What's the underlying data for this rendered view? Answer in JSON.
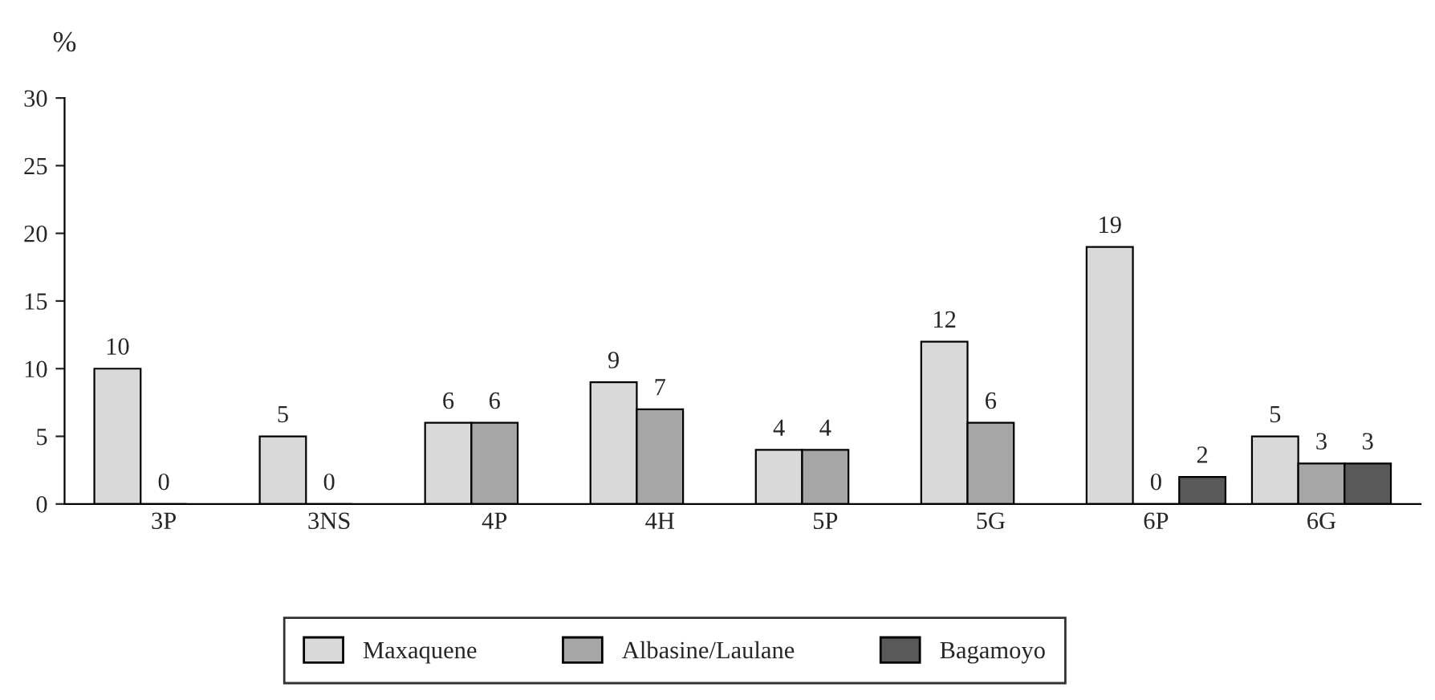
{
  "chart_data": {
    "type": "bar",
    "ylabel": "%",
    "categories": [
      "3P",
      "3NS",
      "4P",
      "4H",
      "5P",
      "5G",
      "6P",
      "6G"
    ],
    "series": [
      {
        "name": "Maxaquene",
        "color": "#d9d9d9",
        "values": [
          10,
          5,
          6,
          9,
          4,
          12,
          19,
          5
        ]
      },
      {
        "name": "Albasine/Laulane",
        "color": "#a6a6a6",
        "values": [
          0,
          0,
          6,
          7,
          4,
          6,
          0,
          3
        ]
      },
      {
        "name": "Bagamoyo",
        "color": "#595959",
        "values": [
          null,
          null,
          null,
          null,
          null,
          null,
          2,
          3
        ]
      }
    ],
    "ylim": [
      0,
      30
    ],
    "yticks": [
      0,
      5,
      10,
      15,
      20,
      25,
      30
    ],
    "data_labels": true,
    "grid": false,
    "legend": "bottom"
  }
}
